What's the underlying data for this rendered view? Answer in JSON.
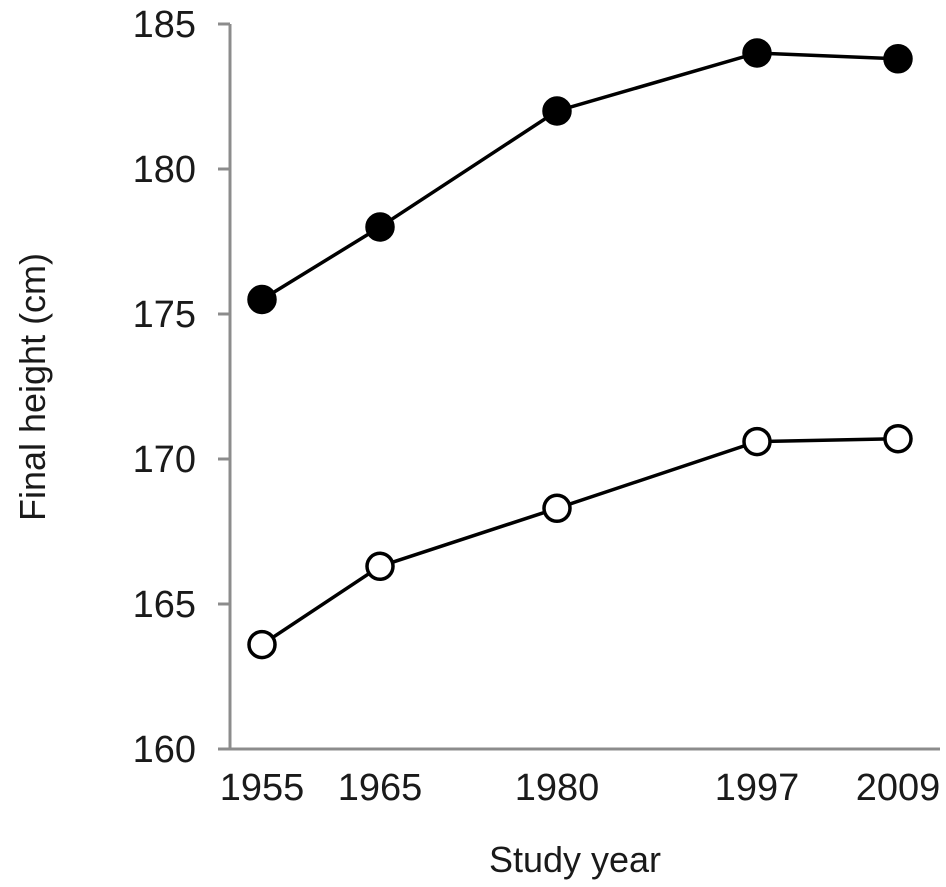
{
  "chart_data": {
    "type": "line",
    "title": "",
    "xlabel": "Study year",
    "ylabel": "Final height (cm)",
    "x": [
      1955,
      1965,
      1980,
      1997,
      2009
    ],
    "x_tick_labels": [
      "1955",
      "1965",
      "1980",
      "1997",
      "2009"
    ],
    "ylim": [
      160,
      185
    ],
    "y_ticks": [
      160,
      165,
      170,
      175,
      180,
      185
    ],
    "y_tick_labels": [
      "160",
      "165",
      "170",
      "175",
      "180",
      "185"
    ],
    "grid": false,
    "legend": "none",
    "series": [
      {
        "marker": "filled-circle",
        "color": "#000000",
        "values": [
          175.5,
          178.0,
          182.0,
          184.0,
          183.8
        ]
      },
      {
        "marker": "open-circle",
        "color": "#000000",
        "values": [
          163.6,
          166.3,
          168.3,
          170.6,
          170.7
        ]
      }
    ]
  }
}
